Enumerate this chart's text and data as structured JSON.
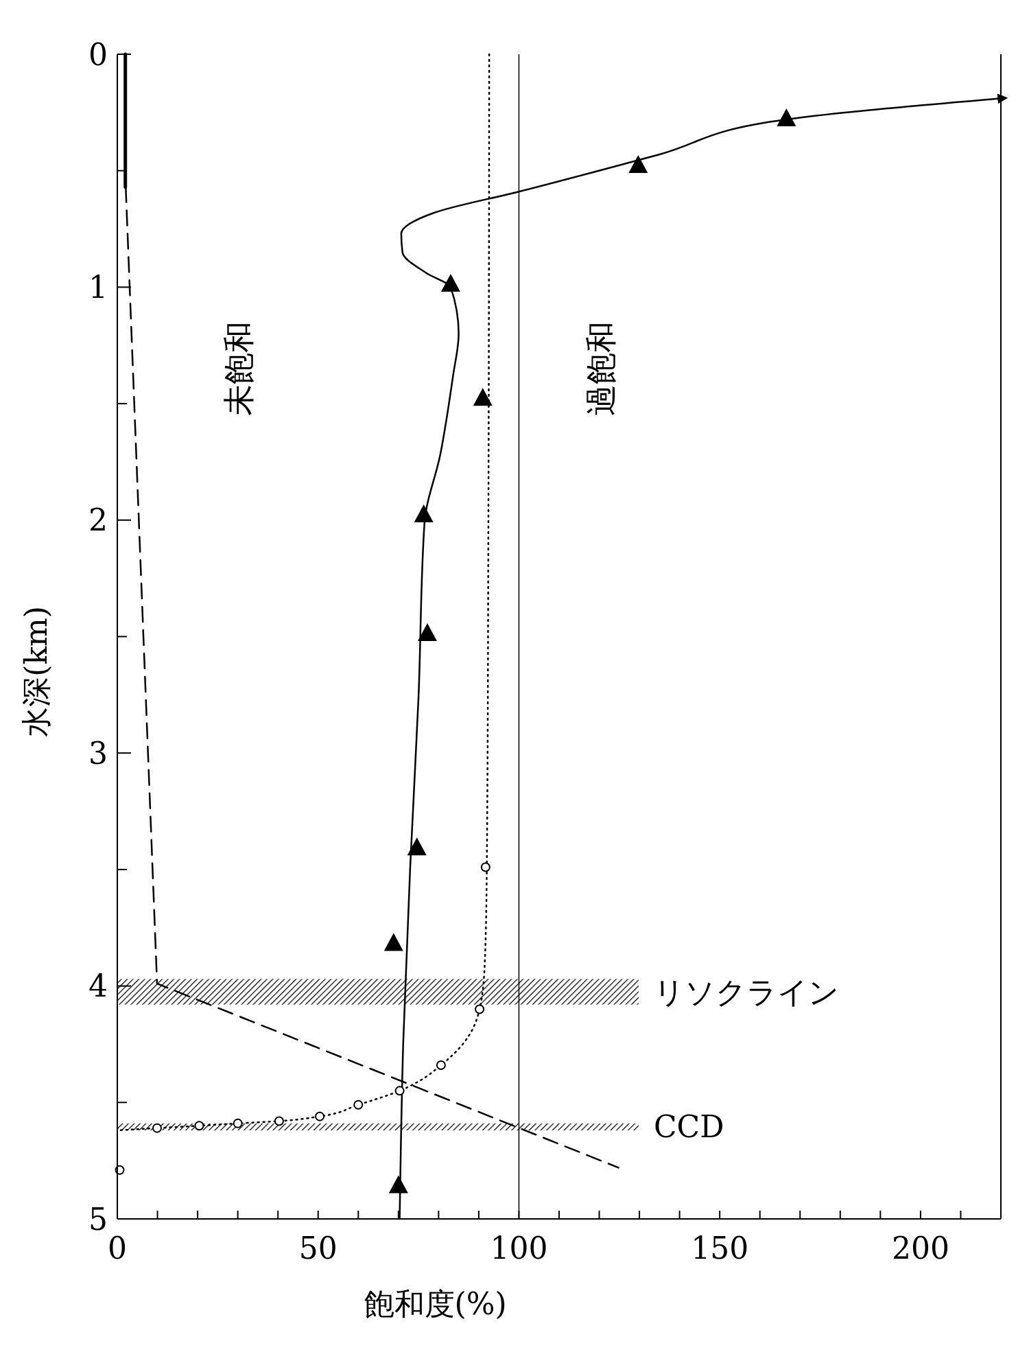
{
  "chart_data": {
    "type": "line",
    "xlabel": "飽和度(%)",
    "ylabel": "水深(km)",
    "xlim": [
      0,
      220
    ],
    "ylim": [
      5,
      0
    ],
    "xticks": [
      0,
      {
        "value": 10,
        "label": null
      },
      {
        "value": 20,
        "label": null
      },
      {
        "value": 30,
        "label": null
      },
      {
        "value": 40,
        "label": null
      },
      50,
      {
        "value": 60,
        "label": null
      },
      {
        "value": 70,
        "label": null
      },
      {
        "value": 80,
        "label": null
      },
      {
        "value": 90,
        "label": null
      },
      100,
      {
        "value": 110,
        "label": null
      },
      {
        "value": 120,
        "label": null
      },
      {
        "value": 130,
        "label": null
      },
      {
        "value": 140,
        "label": null
      },
      150,
      {
        "value": 160,
        "label": null
      },
      {
        "value": 170,
        "label": null
      },
      {
        "value": 180,
        "label": null
      },
      {
        "value": 190,
        "label": null
      },
      200,
      {
        "value": 210,
        "label": null
      }
    ],
    "yticks": [
      0,
      {
        "value": 0.5,
        "label": null
      },
      1,
      {
        "value": 1.5,
        "label": null
      },
      2,
      {
        "value": 2.5,
        "label": null
      },
      3,
      {
        "value": 3.5,
        "label": null
      },
      4,
      {
        "value": 4.5,
        "label": null
      },
      5
    ],
    "grid": false,
    "series": [
      {
        "color": "#000000",
        "line_style": "solid",
        "marker": "none",
        "x": [
          219.7,
          166.6,
          135,
          100,
          79,
          70.7,
          71,
          77,
          83,
          85,
          83.6,
          80.4,
          76.5,
          75,
          72.9,
          71.2,
          70.3
        ],
        "values": [
          0.19,
          0.28,
          0.43,
          0.59,
          0.68,
          0.77,
          0.85,
          0.94,
          1.0,
          1.2,
          1.38,
          1.72,
          2.01,
          2.76,
          3.5,
          4.24,
          5.0
        ]
      },
      {
        "type": "scatter",
        "color": "#000000",
        "marker": "triangle",
        "x": [
          166.6,
          129.7,
          83,
          91,
          76.3,
          77.2,
          74.6,
          68.8,
          70
        ],
        "values": [
          0.28,
          0.48,
          0.99,
          1.48,
          1.98,
          2.49,
          3.41,
          3.82,
          4.86
        ]
      },
      {
        "color": "#000000",
        "line_style": "dotted",
        "marker": "none",
        "x": [
          92.6,
          92.4,
          92,
          91.5,
          90.2,
          86,
          80.6,
          75,
          70.3,
          60,
          50.4,
          40.3,
          30,
          20.4,
          9.9,
          0
        ],
        "values": [
          0,
          2,
          3.49,
          3.9,
          4.1,
          4.25,
          4.34,
          4.41,
          4.45,
          4.51,
          4.56,
          4.58,
          4.59,
          4.6,
          4.61,
          4.62
        ]
      },
      {
        "type": "scatter",
        "color": "#000000",
        "marker": "circle",
        "x": [
          91.7,
          90.2,
          80.6,
          70.3,
          60,
          50.4,
          40.3,
          30,
          20.4,
          9.9,
          0.6
        ],
        "values": [
          3.49,
          4.1,
          4.34,
          4.45,
          4.51,
          4.56,
          4.58,
          4.59,
          4.6,
          4.61,
          4.79
        ]
      },
      {
        "color": "#000000",
        "line_style": "dashed",
        "marker": "none",
        "x": [
          2.1,
          9.9,
          124.8
        ],
        "values": [
          0.57,
          3.99,
          4.78
        ]
      },
      {
        "color": "#000000",
        "line_style": "solid",
        "marker": "none",
        "x": [
          2,
          2
        ],
        "values": [
          0,
          0.57
        ]
      }
    ],
    "ref_lines": [
      {
        "axis": "x",
        "value": 100,
        "color": "#000000"
      }
    ],
    "bands": [
      {
        "axis": "y",
        "from": 3.97,
        "to": 4.08,
        "label": "リソクライン",
        "color": "#000000"
      },
      {
        "axis": "y",
        "from": 4.59,
        "to": 4.62,
        "label": "CCD",
        "color": "#000000"
      }
    ],
    "annotations": [
      "未飽和",
      "過飽和"
    ]
  }
}
